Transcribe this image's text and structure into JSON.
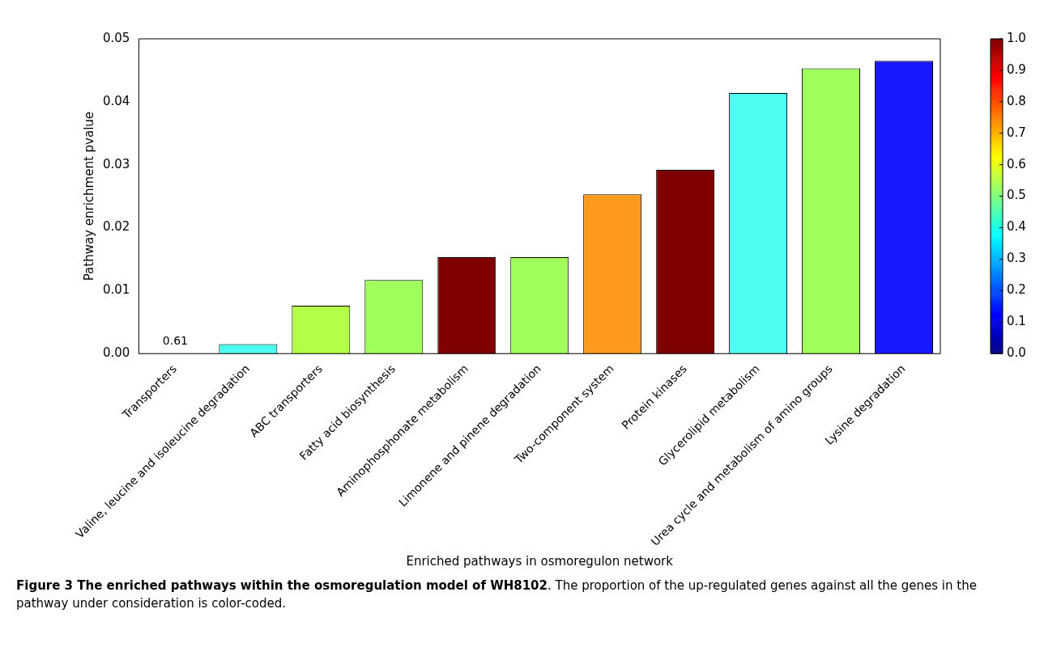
{
  "chart_data": {
    "type": "bar",
    "title": "Figure 3 The enriched pathways within the osmoregulation model of WH8102",
    "xlabel": "Enriched pathways in osmoregulon network",
    "ylabel": "Pathway enrichment pvalue",
    "categories": [
      "Transporters",
      "Valine, leucine and isoleucine degradation",
      "ABC transporters",
      "Fatty acid biosynthesis",
      "Aminophosphonate metabolism",
      "Limonene and pinene degradation",
      "Two-component system",
      "Protein kinases",
      "Glycerolipid metabolism",
      "Urea cycle and metabolism of amino groups",
      "Lysine degradation"
    ],
    "values": [
      null,
      0.0015,
      0.0076,
      0.0117,
      0.0153,
      0.0153,
      0.0253,
      0.0292,
      0.0414,
      0.0453,
      0.0465
    ],
    "colors": [
      "#f0ff10",
      "#4dfff0",
      "#b4ff47",
      "#a0ff5a",
      "#800000",
      "#a0ff5a",
      "#ff9a1f",
      "#800000",
      "#4dfff0",
      "#a0ff5a",
      "#1818ff"
    ],
    "ylim": [
      0,
      0.05
    ],
    "yticks": [
      {
        "value": 0,
        "label": "0.00"
      },
      {
        "value": 0.01,
        "label": "0.01"
      },
      {
        "value": 0.02,
        "label": "0.02"
      },
      {
        "value": 0.03,
        "label": "0.03"
      },
      {
        "value": 0.04,
        "label": "0.04"
      },
      {
        "value": 0.05,
        "label": "0.05"
      }
    ],
    "clim": [
      0,
      1
    ],
    "cticks": [
      {
        "value": 0,
        "label": "0.0"
      },
      {
        "value": 0.1,
        "label": "0.1"
      },
      {
        "value": 0.2,
        "label": "0.2"
      },
      {
        "value": 0.3,
        "label": "0.3"
      },
      {
        "value": 0.4,
        "label": "0.4"
      },
      {
        "value": 0.5,
        "label": "0.5"
      },
      {
        "value": 0.6,
        "label": "0.6"
      },
      {
        "value": 0.7,
        "label": "0.7"
      },
      {
        "value": 0.8,
        "label": "0.8"
      },
      {
        "value": 0.9,
        "label": "0.9"
      },
      {
        "value": 1,
        "label": "1.0"
      }
    ],
    "grid": false,
    "annotations": [
      "0.61",
      ". The proportion of the up-regulated genes against all the genes in the pathway under consideration is color-coded."
    ]
  }
}
